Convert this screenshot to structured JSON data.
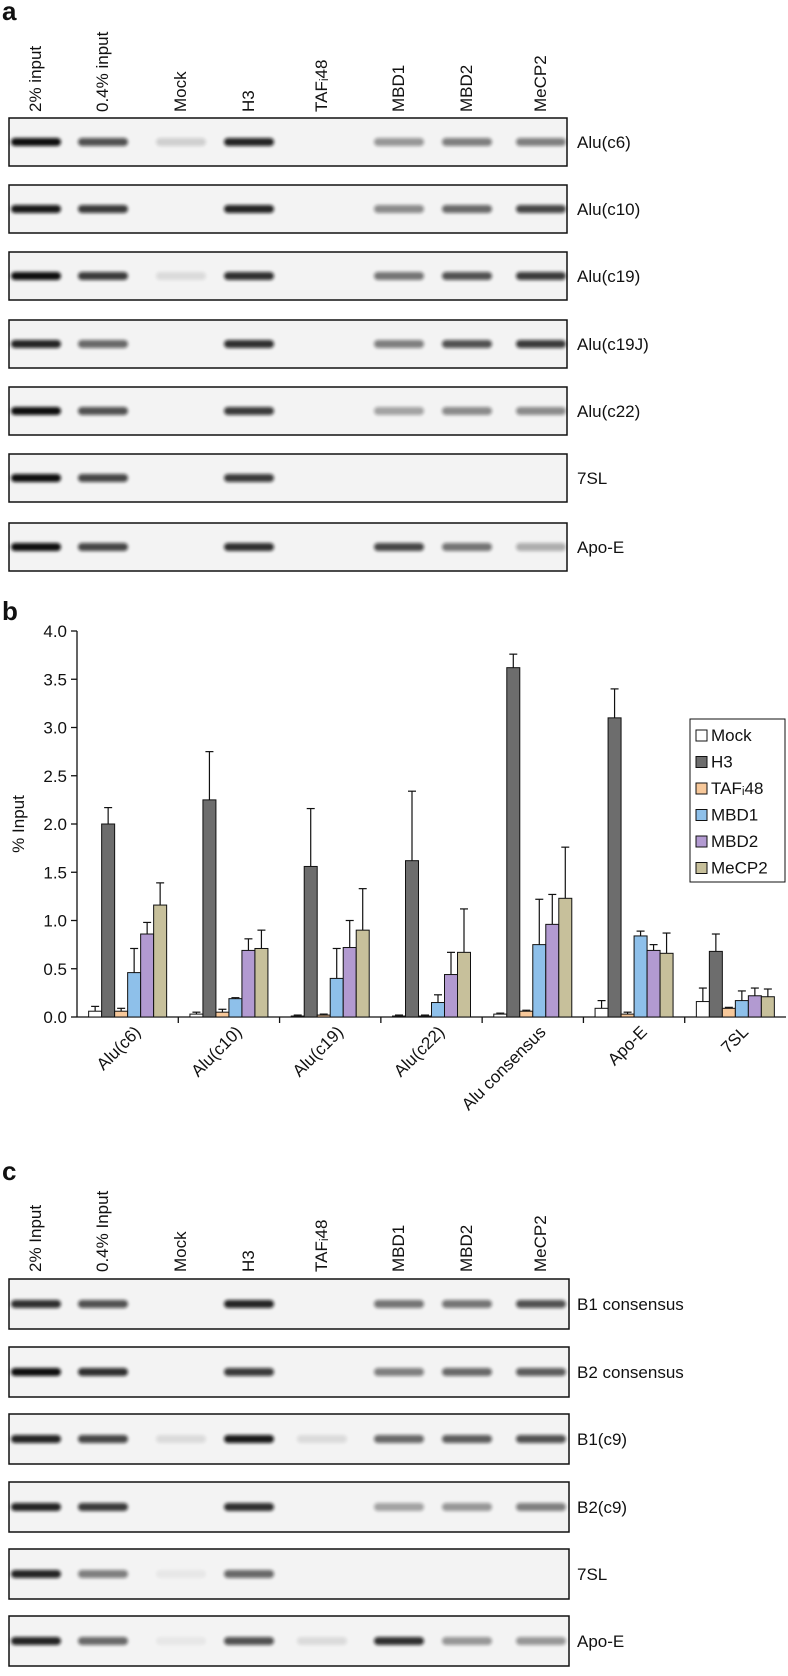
{
  "panel_a": {
    "label": "a",
    "lanes": [
      "2% input",
      "0.4% input",
      "Mock",
      "H3",
      "TAFᵢ48",
      "MBD1",
      "MBD2",
      "MeCP2"
    ],
    "rows": [
      "Alu(c6)",
      "Alu(c10)",
      "Alu(c19)",
      "Alu(c19J)",
      "Alu(c22)",
      "7SL",
      "Apo-E"
    ]
  },
  "chart_data": {
    "type": "bar",
    "panel_label": "b",
    "ylabel": "% Input",
    "categories": [
      "Alu(c6)",
      "Alu(c10)",
      "Alu(c19)",
      "Alu(c22)",
      "Alu consensus",
      "Apo-E",
      "7SL"
    ],
    "series": [
      {
        "name": "Mock",
        "color": "#ffffff",
        "values": [
          0.06,
          0.03,
          0.01,
          0.01,
          0.03,
          0.09,
          0.16
        ],
        "errors": [
          0.05,
          0.02,
          0.01,
          0.01,
          0.01,
          0.08,
          0.14
        ]
      },
      {
        "name": "H3",
        "color": "#6d6d6d",
        "values": [
          2.0,
          2.25,
          1.56,
          1.62,
          3.62,
          3.1,
          0.68
        ],
        "errors": [
          0.17,
          0.5,
          0.6,
          0.72,
          0.14,
          0.3,
          0.18
        ]
      },
      {
        "name": "TAFᵢ48",
        "color": "#f7c89a",
        "values": [
          0.06,
          0.05,
          0.02,
          0.01,
          0.06,
          0.03,
          0.09
        ],
        "errors": [
          0.03,
          0.03,
          0.01,
          0.01,
          0.01,
          0.02,
          0.01
        ]
      },
      {
        "name": "MBD1",
        "color": "#8ec0ea",
        "values": [
          0.46,
          0.19,
          0.4,
          0.15,
          0.75,
          0.84,
          0.17
        ],
        "errors": [
          0.25,
          0.01,
          0.31,
          0.08,
          0.47,
          0.05,
          0.1
        ]
      },
      {
        "name": "MBD2",
        "color": "#b29ad1",
        "values": [
          0.86,
          0.69,
          0.72,
          0.44,
          0.96,
          0.69,
          0.22
        ],
        "errors": [
          0.12,
          0.12,
          0.28,
          0.23,
          0.31,
          0.06,
          0.08
        ]
      },
      {
        "name": "MeCP2",
        "color": "#c7c09b",
        "values": [
          1.16,
          0.71,
          0.9,
          0.67,
          1.23,
          0.66,
          0.21
        ],
        "errors": [
          0.23,
          0.19,
          0.43,
          0.45,
          0.53,
          0.21,
          0.08
        ]
      }
    ],
    "ylim": [
      0,
      4
    ],
    "yticks": [
      {
        "value": 0,
        "label": "0.0"
      },
      {
        "value": 0.5,
        "label": "0.5"
      },
      {
        "value": 1,
        "label": "1.0"
      },
      {
        "value": 1.5,
        "label": "1.5"
      },
      {
        "value": 2,
        "label": "2.0"
      },
      {
        "value": 2.5,
        "label": "2.5"
      },
      {
        "value": 3,
        "label": "3.0"
      },
      {
        "value": 3.5,
        "label": "3.5"
      },
      {
        "value": 4,
        "label": "4.0"
      }
    ],
    "grid": false,
    "legend": "right"
  },
  "panel_c": {
    "label": "c",
    "lanes": [
      "2% Input",
      "0.4% Input",
      "Mock",
      "H3",
      "TAFᵢ48",
      "MBD1",
      "MBD2",
      "MeCP2"
    ],
    "rows": [
      "B1 consensus",
      "B2 consensus",
      "B1(c9)",
      "B2(c9)",
      "7SL",
      "Apo-E"
    ]
  }
}
